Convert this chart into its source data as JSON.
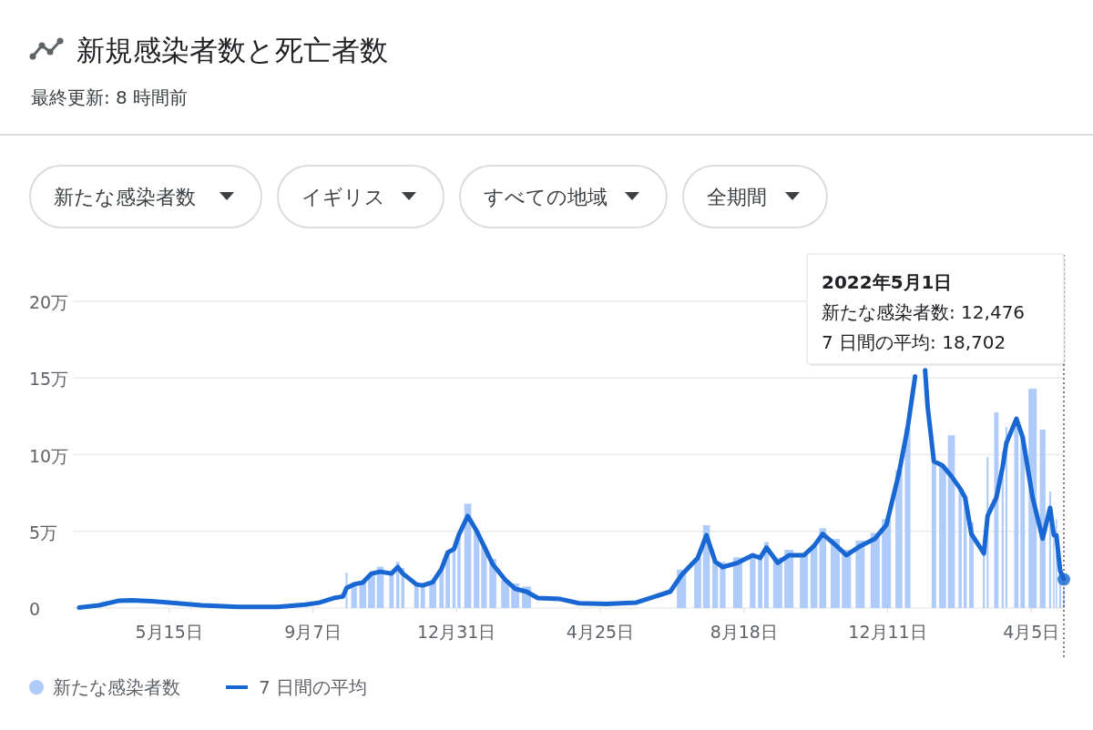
{
  "chart_data": {
    "type": "line",
    "title": "新規感染者数と死亡者数",
    "subtitle": "最終更新: 8 時間前",
    "x": [
      "2020-03-04",
      "2020-03-20",
      "2020-04-05",
      "2020-04-15",
      "2020-05-01",
      "2020-05-15",
      "2020-06-10",
      "2020-07-10",
      "2020-08-10",
      "2020-09-01",
      "2020-09-12",
      "2020-09-25",
      "2020-10-01",
      "2020-10-04",
      "2020-10-10",
      "2020-10-17",
      "2020-10-24",
      "2020-10-31",
      "2020-11-09",
      "2020-11-14",
      "2020-11-18",
      "2020-11-29",
      "2020-12-04",
      "2020-12-12",
      "2020-12-19",
      "2020-12-24",
      "2020-12-29",
      "2021-01-02",
      "2021-01-09",
      "2021-01-16",
      "2021-01-22",
      "2021-01-29",
      "2021-02-08",
      "2021-02-16",
      "2021-02-25",
      "2021-03-06",
      "2021-03-24",
      "2021-04-08",
      "2021-04-30",
      "2021-05-24",
      "2021-06-05",
      "2021-06-20",
      "2021-06-29",
      "2021-07-12",
      "2021-07-19",
      "2021-07-26",
      "2021-08-01",
      "2021-08-13",
      "2021-08-25",
      "2021-08-31",
      "2021-09-05",
      "2021-09-14",
      "2021-09-23",
      "2021-10-05",
      "2021-10-13",
      "2021-10-20",
      "2021-10-30",
      "2021-11-08",
      "2021-11-19",
      "2021-12-01",
      "2021-12-10",
      "2021-12-20",
      "2021-12-27",
      "2022-01-02",
      "2022-01-06",
      "2022-01-10",
      "2022-01-12",
      "2022-01-17",
      "2022-01-24",
      "2022-01-31",
      "2022-02-07",
      "2022-02-11",
      "2022-02-16",
      "2022-02-26",
      "2022-03-01",
      "2022-03-08",
      "2022-03-13",
      "2022-03-16",
      "2022-03-24",
      "2022-03-29",
      "2022-04-06",
      "2022-04-14",
      "2022-04-20",
      "2022-04-23",
      "2022-04-25",
      "2022-04-28",
      "2022-05-01"
    ],
    "series": [
      {
        "name": "新たな感染者数",
        "type": "bar",
        "color": "#aecbfa",
        "values": [
          null,
          null,
          null,
          null,
          null,
          null,
          null,
          null,
          null,
          null,
          null,
          null,
          null,
          2.3,
          1.55,
          1.66,
          2.25,
          2.7,
          2.25,
          3.0,
          2.6,
          1.54,
          1.48,
          1.68,
          2.55,
          3.62,
          3.85,
          4.8,
          6.8,
          5.04,
          4.04,
          3.2,
          1.84,
          1.6,
          1.4,
          null,
          null,
          null,
          null,
          null,
          null,
          null,
          2.5,
          3.26,
          5.4,
          3.03,
          3.0,
          3.3,
          3.44,
          3.27,
          4.3,
          3.3,
          3.8,
          3.44,
          4.04,
          5.2,
          4.5,
          3.8,
          4.4,
          4.9,
          5.8,
          9.0,
          11.75,
          null,
          null,
          null,
          null,
          9.57,
          9.28,
          11.26,
          7.8,
          7.2,
          5.6,
          3.56,
          9.85,
          12.76,
          10.2,
          11.8,
          12.34,
          11.16,
          14.3,
          11.63,
          7.6,
          4.75,
          5.8,
          2.45,
          1.2476
        ]
      },
      {
        "name": "7 日間の平均",
        "type": "line",
        "color": "#1967d2",
        "values": [
          0.03,
          0.18,
          0.48,
          0.5,
          0.45,
          0.36,
          0.18,
          0.07,
          0.08,
          0.22,
          0.35,
          0.67,
          0.75,
          1.3,
          1.55,
          1.66,
          2.25,
          2.37,
          2.25,
          2.67,
          2.25,
          1.54,
          1.48,
          1.68,
          2.55,
          3.62,
          3.85,
          4.8,
          6.0,
          5.04,
          4.04,
          2.85,
          1.84,
          1.25,
          1.07,
          0.65,
          0.59,
          0.31,
          0.27,
          0.36,
          0.67,
          1.07,
          2.15,
          3.26,
          4.75,
          3.03,
          2.67,
          2.95,
          3.44,
          3.27,
          3.94,
          2.95,
          3.44,
          3.44,
          4.04,
          4.83,
          4.13,
          3.44,
          4.04,
          4.53,
          5.42,
          8.78,
          11.75,
          15.1,
          null,
          15.5,
          13.1,
          9.57,
          9.28,
          8.6,
          7.8,
          7.2,
          4.83,
          3.56,
          6.01,
          7.2,
          9.2,
          10.76,
          12.34,
          11.16,
          7.2,
          4.53,
          6.53,
          4.75,
          4.75,
          2.45,
          1.8702
        ]
      }
    ],
    "xlim": [
      "2020-02-28",
      "2022-05-01"
    ],
    "xticks": [
      {
        "value": "2020-05-15",
        "label": "5月15日"
      },
      {
        "value": "2020-09-07",
        "label": "9月7日"
      },
      {
        "value": "2020-12-31",
        "label": "12月31日"
      },
      {
        "value": "2021-04-25",
        "label": "4月25日"
      },
      {
        "value": "2021-08-18",
        "label": "8月18日"
      },
      {
        "value": "2021-12-11",
        "label": "12月11日"
      },
      {
        "value": "2022-04-05",
        "label": "4月5日"
      }
    ],
    "ylim": [
      0,
      20
    ],
    "yticks": [
      {
        "value": 0,
        "label": "0"
      },
      {
        "value": 5,
        "label": "5万"
      },
      {
        "value": 10,
        "label": "10万"
      },
      {
        "value": 15,
        "label": "15万"
      },
      {
        "value": 20,
        "label": "20万"
      }
    ],
    "grid": "y",
    "legend": "bottom",
    "ref_lines": [
      {
        "axis": "x",
        "value": "2022-05-01",
        "line_style": "dotted",
        "color": "#555555"
      }
    ],
    "annotations": [
      "新たな感染者数",
      "イギリス",
      "すべての地域",
      "全期間",
      "2022年5月1日",
      "新たな感染者数: 12,476",
      "7 日間の平均: 18,702"
    ]
  }
}
